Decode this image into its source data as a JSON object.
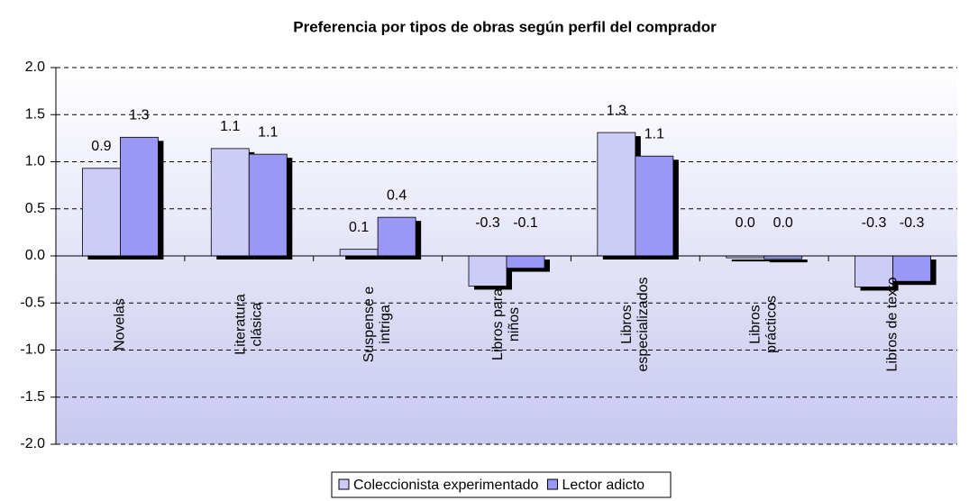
{
  "chart_data": {
    "type": "bar",
    "title": "Preferencia por tipos de obras según perfil del comprador",
    "categories": [
      "Novelas",
      "Literatura\nclásica",
      "Suspense e\nintriga",
      "Libros para\nniños",
      "Libros\nespecializados",
      "Libros\nprácticos",
      "Libros de texto"
    ],
    "series": [
      {
        "name": "Coleccionista experimentado",
        "color": "#ccccf7",
        "values": [
          0.93,
          1.14,
          0.07,
          -0.32,
          1.31,
          -0.02,
          -0.33
        ],
        "value_labels": [
          "0.9",
          "1.1",
          "0.1",
          "-0.3",
          "1.3",
          "0.0",
          "-0.3"
        ]
      },
      {
        "name": "Lector adicto",
        "color": "#9999f5",
        "values": [
          1.26,
          1.08,
          0.41,
          -0.13,
          1.06,
          -0.03,
          -0.27
        ],
        "value_labels": [
          "1.3",
          "1.1",
          "0.4",
          "-0.1",
          "1.1",
          "0.0",
          "-0.3"
        ]
      }
    ],
    "ylim": [
      -2,
      2
    ],
    "yticks": [
      {
        "value": -2,
        "label": "-2.0"
      },
      {
        "value": -1.5,
        "label": "-1.5"
      },
      {
        "value": -1,
        "label": "-1.0"
      },
      {
        "value": -0.5,
        "label": "-0.5"
      },
      {
        "value": 0,
        "label": "0.0"
      },
      {
        "value": 0.5,
        "label": "0.5"
      },
      {
        "value": 1,
        "label": "1.0"
      },
      {
        "value": 1.5,
        "label": "1.5"
      },
      {
        "value": 2,
        "label": "2.0"
      }
    ],
    "grid": true,
    "legend": "bottom"
  }
}
